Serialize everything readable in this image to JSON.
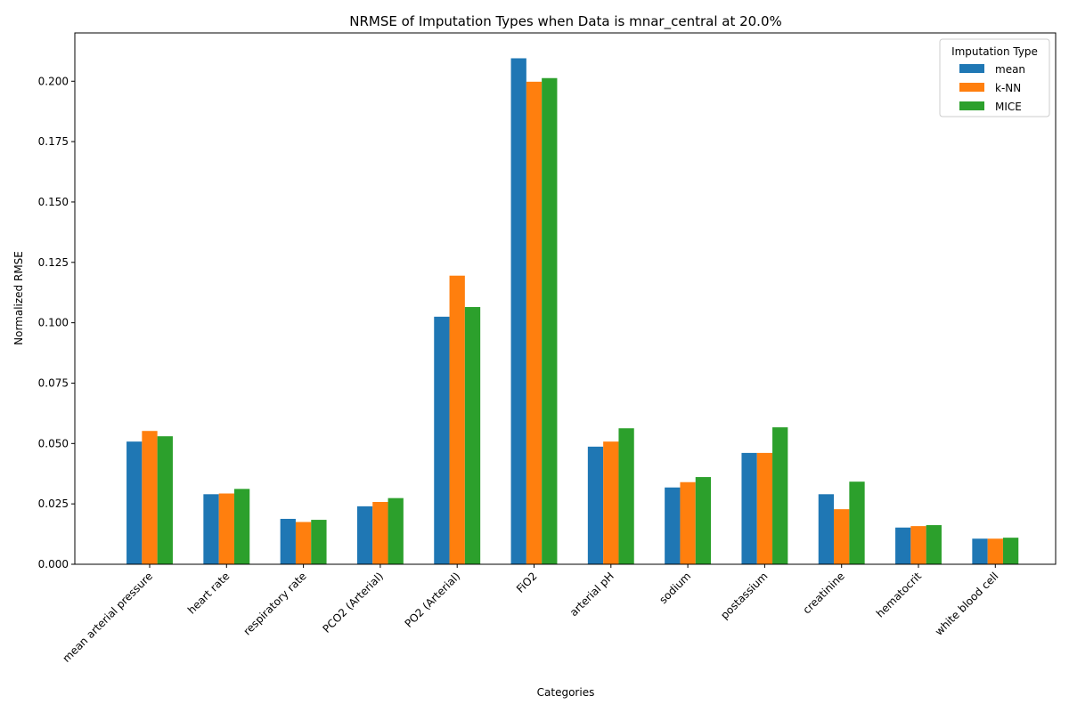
{
  "chart_data": {
    "type": "bar",
    "title": "NRMSE of Imputation Types when Data is mnar_central at 20.0%",
    "xlabel": "Categories",
    "ylabel": "Normalized RMSE",
    "ylim": [
      0,
      0.22
    ],
    "yticks": [
      "0.000",
      "0.025",
      "0.050",
      "0.075",
      "0.100",
      "0.125",
      "0.150",
      "0.175",
      "0.200"
    ],
    "grid": false,
    "legend": {
      "title": "Imputation Type",
      "placement": "top-right"
    },
    "categories": [
      "mean arterial pressure",
      "heart rate",
      "respiratory rate",
      "PCO2 (Arterial)",
      "PO2 (Arterial)",
      "FiO2",
      "arterial pH",
      "sodium",
      "postassium",
      "creatinine",
      "hematocrit",
      "white blood cell"
    ],
    "series": [
      {
        "name": "mean",
        "color": "#1f77b4",
        "values": [
          0.0508,
          0.029,
          0.0188,
          0.024,
          0.1025,
          0.2095,
          0.0487,
          0.0318,
          0.0461,
          0.029,
          0.0152,
          0.0106
        ]
      },
      {
        "name": "k-NN",
        "color": "#ff7f0e",
        "values": [
          0.0552,
          0.0293,
          0.0175,
          0.0258,
          0.1195,
          0.1998,
          0.0508,
          0.034,
          0.0461,
          0.0228,
          0.0158,
          0.0106
        ]
      },
      {
        "name": "MICE",
        "color": "#2ca02c",
        "values": [
          0.053,
          0.0312,
          0.0184,
          0.0274,
          0.1065,
          0.2013,
          0.0563,
          0.0361,
          0.0567,
          0.0342,
          0.0162,
          0.011
        ]
      }
    ]
  }
}
